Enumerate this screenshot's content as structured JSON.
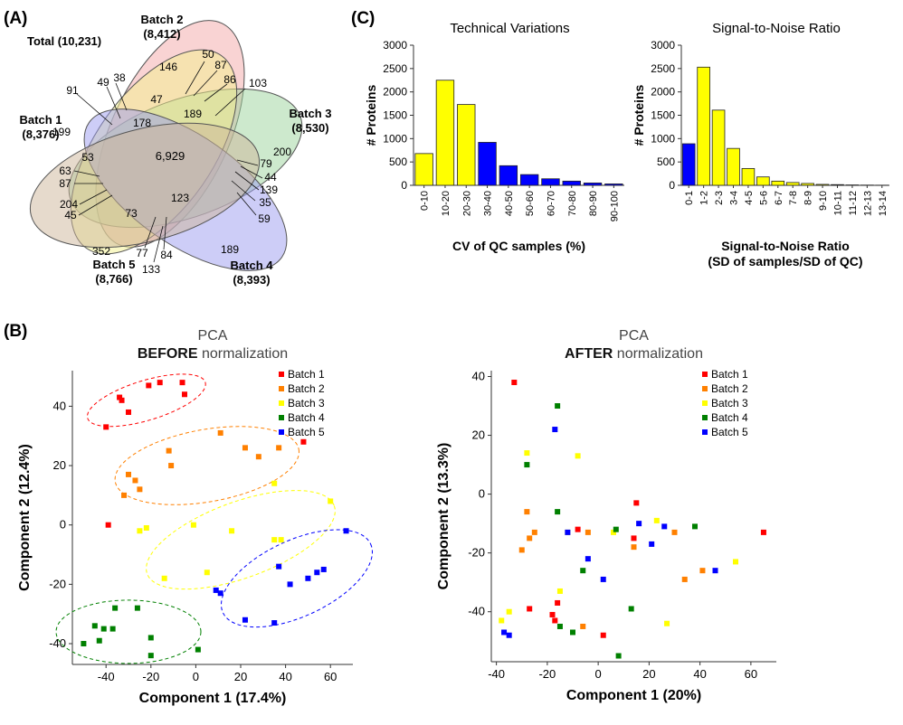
{
  "panels": {
    "a": "(A)",
    "b": "(B)",
    "c": "(C)"
  },
  "venn": {
    "total": "Total (10,231)",
    "sets": [
      {
        "name": "Batch 1",
        "count": "(8,376)",
        "color": "#f4f28e"
      },
      {
        "name": "Batch 2",
        "count": "(8,412)",
        "color": "#f4a8a8"
      },
      {
        "name": "Batch 3",
        "count": "(8,530)",
        "color": "#9cd49c"
      },
      {
        "name": "Batch 4",
        "count": "(8,393)",
        "color": "#9c9cf0"
      },
      {
        "name": "Batch 5",
        "count": "(8,766)",
        "color": "#cdb59a"
      }
    ],
    "regions": [
      "146",
      "200",
      "189",
      "352",
      "199",
      "6,929",
      "178",
      "189",
      "53",
      "123",
      "73",
      "47"
    ],
    "callouts": [
      "50",
      "87",
      "86",
      "103",
      "38",
      "49",
      "91",
      "79",
      "44",
      "139",
      "35",
      "59",
      "63",
      "87",
      "204",
      "45",
      "77",
      "84",
      "133"
    ]
  },
  "chart_data": [
    {
      "type": "bar",
      "title": "Technical Variations",
      "xlabel": "CV of QC samples (%)",
      "ylabel": "# Proteins",
      "categories": [
        "0-10",
        "10-20",
        "20-30",
        "30-40",
        "40-50",
        "50-60",
        "60-70",
        "70-80",
        "80-90",
        "90-100"
      ],
      "values": [
        680,
        2250,
        1730,
        920,
        420,
        230,
        140,
        90,
        50,
        30
      ],
      "colors": [
        "#ffff00",
        "#ffff00",
        "#ffff00",
        "#0000ff",
        "#0000ff",
        "#0000ff",
        "#0000ff",
        "#0000ff",
        "#0000ff",
        "#0000ff"
      ],
      "ylim": [
        0,
        3000
      ],
      "yticks": [
        "0",
        "500",
        "1000",
        "1500",
        "2000",
        "2500",
        "3000"
      ]
    },
    {
      "type": "bar",
      "title": "Signal-to-Noise Ratio",
      "xlabel": "Signal-to-Noise Ratio",
      "xlabel2": "(SD of samples/SD of QC)",
      "ylabel": "# Proteins",
      "categories": [
        "0-1",
        "1-2",
        "2-3",
        "3-4",
        "4-5",
        "5-6",
        "6-7",
        "7-8",
        "8-9",
        "9-10",
        "10-11",
        "11-12",
        "12-13",
        "13-14"
      ],
      "values": [
        890,
        2530,
        1610,
        790,
        360,
        180,
        90,
        60,
        40,
        20,
        15,
        8,
        5,
        3
      ],
      "colors": [
        "#0000ff",
        "#ffff00",
        "#ffff00",
        "#ffff00",
        "#ffff00",
        "#ffff00",
        "#ffff00",
        "#ffff00",
        "#ffff00",
        "#ffff00",
        "#ffff00",
        "#ffff00",
        "#ffff00",
        "#ffff00"
      ],
      "ylim": [
        0,
        3000
      ],
      "yticks": [
        "0",
        "500",
        "1000",
        "1500",
        "2000",
        "2500",
        "3000"
      ]
    },
    {
      "type": "scatter",
      "title": "PCA",
      "title_bold": "BEFORE",
      "title_rest": " normalization",
      "xlabel": "Component 1 (17.4%)",
      "ylabel": "Component 2 (12.4%)",
      "xlim": [
        -55,
        70
      ],
      "ylim": [
        -47,
        52
      ],
      "xticks": [
        "-40",
        "-20",
        "0",
        "20",
        "40",
        "60"
      ],
      "yticks": [
        "-40",
        "-20",
        "0",
        "20",
        "40"
      ],
      "series": [
        {
          "name": "Batch 1",
          "color": "#ff0000",
          "points": [
            [
              -40,
              33
            ],
            [
              -34,
              43
            ],
            [
              -33,
              42
            ],
            [
              -30,
              38
            ],
            [
              -21,
              47
            ],
            [
              -16,
              48
            ],
            [
              -6,
              48
            ],
            [
              -5,
              44
            ],
            [
              -39,
              0
            ],
            [
              48,
              28
            ]
          ]
        },
        {
          "name": "Batch 2",
          "color": "#ff8000",
          "points": [
            [
              -30,
              17
            ],
            [
              -27,
              15
            ],
            [
              -25,
              12
            ],
            [
              -32,
              10
            ],
            [
              -12,
              25
            ],
            [
              -11,
              20
            ],
            [
              11,
              31
            ],
            [
              22,
              26
            ],
            [
              28,
              23
            ],
            [
              37,
              26
            ]
          ]
        },
        {
          "name": "Batch 3",
          "color": "#ffff00",
          "points": [
            [
              -25,
              -2
            ],
            [
              -22,
              -1
            ],
            [
              -1,
              0
            ],
            [
              16,
              -2
            ],
            [
              35,
              -5
            ],
            [
              38,
              -5
            ],
            [
              35,
              14
            ],
            [
              60,
              8
            ],
            [
              -14,
              -18
            ],
            [
              5,
              -16
            ]
          ]
        },
        {
          "name": "Batch 4",
          "color": "#008000",
          "points": [
            [
              -50,
              -40
            ],
            [
              -45,
              -34
            ],
            [
              -43,
              -39
            ],
            [
              -41,
              -35
            ],
            [
              -37,
              -35
            ],
            [
              -36,
              -28
            ],
            [
              -26,
              -28
            ],
            [
              -20,
              -38
            ],
            [
              -20,
              -44
            ],
            [
              1,
              -42
            ]
          ]
        },
        {
          "name": "Batch 5",
          "color": "#0000ff",
          "points": [
            [
              9,
              -22
            ],
            [
              11,
              -23
            ],
            [
              22,
              -32
            ],
            [
              35,
              -33
            ],
            [
              37,
              -14
            ],
            [
              42,
              -20
            ],
            [
              50,
              -18
            ],
            [
              54,
              -16
            ],
            [
              57,
              -15
            ],
            [
              67,
              -2
            ]
          ]
        }
      ]
    },
    {
      "type": "scatter",
      "title": "PCA",
      "title_bold": "AFTER",
      "title_rest": " normalization",
      "xlabel": "Component 1 (20%)",
      "ylabel": "Component 2 (13.3%)",
      "xlim": [
        -42,
        70
      ],
      "ylim": [
        -57,
        42
      ],
      "xticks": [
        "-40",
        "-20",
        "0",
        "20",
        "40",
        "60"
      ],
      "yticks": [
        "-40",
        "-20",
        "0",
        "20",
        "40"
      ],
      "series": [
        {
          "name": "Batch 1",
          "color": "#ff0000",
          "points": [
            [
              -33,
              38
            ],
            [
              -27,
              -39
            ],
            [
              -18,
              -41
            ],
            [
              -17,
              -43
            ],
            [
              -16,
              -37
            ],
            [
              -8,
              -12
            ],
            [
              2,
              -48
            ],
            [
              14,
              -15
            ],
            [
              15,
              -3
            ],
            [
              65,
              -13
            ]
          ]
        },
        {
          "name": "Batch 2",
          "color": "#ff8000",
          "points": [
            [
              -30,
              -19
            ],
            [
              -28,
              -6
            ],
            [
              -27,
              -15
            ],
            [
              -25,
              -13
            ],
            [
              -4,
              -13
            ],
            [
              -6,
              -45
            ],
            [
              14,
              -18
            ],
            [
              30,
              -13
            ],
            [
              34,
              -29
            ],
            [
              41,
              -26
            ]
          ]
        },
        {
          "name": "Batch 3",
          "color": "#ffff00",
          "points": [
            [
              -38,
              -43
            ],
            [
              -35,
              -40
            ],
            [
              -28,
              14
            ],
            [
              -8,
              13
            ],
            [
              -15,
              -33
            ],
            [
              -12,
              -13
            ],
            [
              6,
              -13
            ],
            [
              23,
              -9
            ],
            [
              27,
              -44
            ],
            [
              54,
              -23
            ]
          ]
        },
        {
          "name": "Batch 4",
          "color": "#008000",
          "points": [
            [
              -28,
              10
            ],
            [
              -16,
              30
            ],
            [
              -16,
              -6
            ],
            [
              -15,
              -45
            ],
            [
              -6,
              -26
            ],
            [
              -10,
              -47
            ],
            [
              7,
              -12
            ],
            [
              8,
              -55
            ],
            [
              13,
              -39
            ],
            [
              38,
              -11
            ]
          ]
        },
        {
          "name": "Batch 5",
          "color": "#0000ff",
          "points": [
            [
              -37,
              -47
            ],
            [
              -35,
              -48
            ],
            [
              -17,
              22
            ],
            [
              -12,
              -13
            ],
            [
              -4,
              -22
            ],
            [
              2,
              -29
            ],
            [
              16,
              -10
            ],
            [
              21,
              -17
            ],
            [
              26,
              -11
            ],
            [
              46,
              -26
            ]
          ]
        }
      ]
    }
  ]
}
